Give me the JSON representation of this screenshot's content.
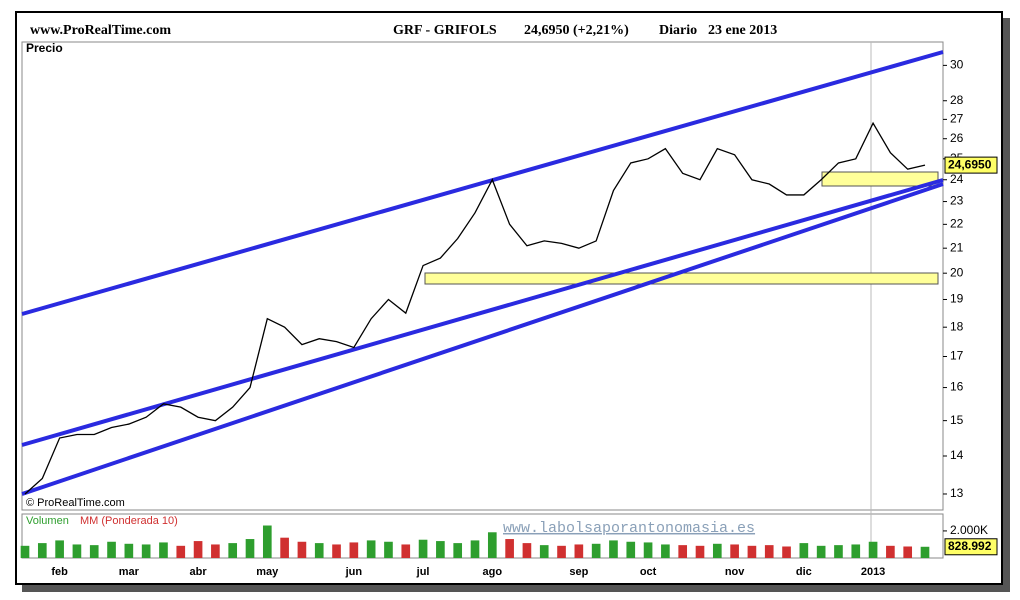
{
  "header": {
    "site": "www.ProRealTime.com",
    "symbol": "GRF - GRIFOLS",
    "quote": "24,6950 (+2,21%)",
    "period": "Diario",
    "date": "23 ene 2013",
    "watermark": "www.labolsaporantonomasia.es",
    "copyright": "© ProRealTime.com"
  },
  "chart_data": [
    {
      "type": "line",
      "title": "Precio",
      "color": "#000000",
      "log": true,
      "categories": [
        null,
        null,
        "feb",
        null,
        null,
        null,
        "mar",
        null,
        null,
        null,
        "abr",
        null,
        null,
        null,
        "may",
        null,
        null,
        null,
        null,
        "jun",
        null,
        null,
        null,
        "jul",
        null,
        null,
        null,
        "ago",
        null,
        null,
        null,
        null,
        "sep",
        null,
        null,
        null,
        "oct",
        null,
        null,
        null,
        null,
        "nov",
        null,
        null,
        null,
        "dic",
        null,
        null,
        null,
        "2013",
        null,
        null,
        null
      ],
      "values": [
        13.0,
        13.4,
        14.5,
        14.6,
        14.6,
        14.8,
        14.9,
        15.1,
        15.5,
        15.4,
        15.1,
        15.0,
        15.4,
        16.0,
        18.3,
        18.0,
        17.4,
        17.6,
        17.5,
        17.3,
        18.3,
        19.0,
        18.5,
        20.3,
        20.6,
        21.4,
        22.5,
        24.0,
        22.0,
        21.1,
        21.3,
        21.2,
        21.0,
        21.3,
        23.5,
        24.8,
        25.0,
        25.5,
        24.3,
        24.0,
        25.5,
        25.2,
        24.0,
        23.8,
        23.3,
        23.3,
        24.0,
        24.8,
        25.0,
        26.8,
        25.3,
        24.5,
        24.695
      ],
      "ylim": [
        12.6,
        31.4
      ],
      "yticks": [
        13,
        14,
        15,
        16,
        17,
        18,
        19,
        20,
        21,
        22,
        23,
        24,
        25,
        26,
        27,
        28,
        30
      ],
      "last_price": {
        "value": 24.695,
        "label": "24,6950"
      }
    },
    {
      "type": "bar",
      "title": "Volumen",
      "subtitle": "MM (Ponderada 10)",
      "up_color": "#2e9e2e",
      "down_color": "#d03030",
      "values": [
        900000,
        1100000,
        1300000,
        1000000,
        950000,
        1200000,
        1050000,
        1000000,
        1150000,
        900000,
        1250000,
        1000000,
        1100000,
        1400000,
        2400000,
        1500000,
        1200000,
        1100000,
        1000000,
        1150000,
        1300000,
        1200000,
        1000000,
        1350000,
        1250000,
        1100000,
        1300000,
        1900000,
        1400000,
        1100000,
        950000,
        900000,
        1000000,
        1050000,
        1300000,
        1200000,
        1150000,
        1000000,
        950000,
        900000,
        1050000,
        1000000,
        900000,
        950000,
        850000,
        1100000,
        900000,
        950000,
        1000000,
        1200000,
        900000,
        850000,
        828992
      ],
      "ylim": [
        0,
        3250000
      ],
      "yticks": [
        {
          "value": 2000000,
          "label": "2.000K"
        }
      ],
      "last_volume": {
        "value": 828992,
        "label": "828.992"
      }
    }
  ]
}
